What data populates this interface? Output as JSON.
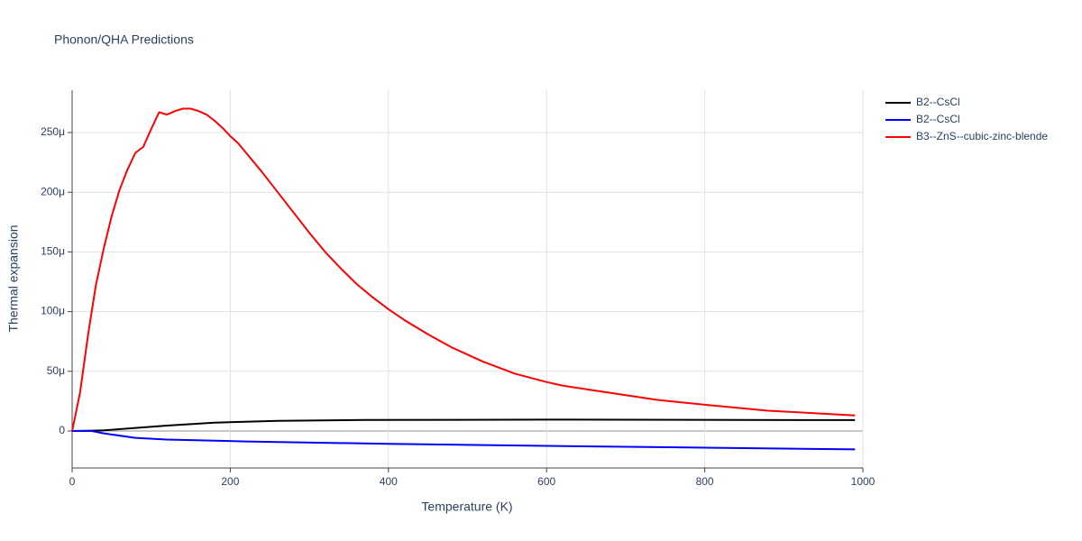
{
  "chart_data": {
    "type": "line",
    "title": "Phonon/QHA Predictions",
    "x_label": "Temperature (K)",
    "y_label": "Thermal expansion",
    "xlim": [
      0,
      1000
    ],
    "ylim": [
      -3.1e-05,
      0.0002855
    ],
    "xticks": [
      0,
      200,
      400,
      600,
      800,
      1000
    ],
    "yticks": [
      0,
      {
        "value": 5e-05,
        "label": "50μ"
      },
      {
        "value": 0.0001,
        "label": "100μ"
      },
      {
        "value": 0.00015,
        "label": "150μ"
      },
      {
        "value": 0.0002,
        "label": "200μ"
      },
      {
        "value": 0.00025,
        "label": "250μ"
      }
    ],
    "grid": true,
    "legend": "outside-right",
    "series": [
      {
        "name": "B2--CsCl",
        "color": "#000000",
        "x": [
          0,
          25,
          40,
          80,
          120,
          180,
          260,
          370,
          600,
          990
        ],
        "values": [
          0,
          3e-07,
          5e-07,
          2.5e-06,
          4.5e-06,
          7e-06,
          8.5e-06,
          9.2e-06,
          9.5e-06,
          9.1e-06
        ]
      },
      {
        "name": "B2--CsCl",
        "color": "#0000ff",
        "x": [
          0,
          25,
          40,
          80,
          120,
          220,
          400,
          600,
          800,
          990
        ],
        "values": [
          0,
          0,
          -2e-06,
          -5.8e-06,
          -7.2e-06,
          -8.8e-06,
          -1.08e-05,
          -1.25e-05,
          -1.4e-05,
          -1.54e-05
        ]
      },
      {
        "name": "B3--ZnS--cubic-zinc-blende",
        "color": "#ff0000",
        "x": [
          0,
          10,
          20,
          30,
          40,
          50,
          60,
          70,
          80,
          90,
          100,
          110,
          120,
          130,
          140,
          150,
          160,
          170,
          180,
          190,
          200,
          210,
          220,
          240,
          260,
          280,
          300,
          320,
          340,
          360,
          380,
          400,
          420,
          450,
          480,
          520,
          560,
          600,
          620,
          680,
          740,
          800,
          880,
          990
        ],
        "values": [
          0,
          3.2e-05,
          8e-05,
          0.000122,
          0.000153,
          0.00018,
          0.000202,
          0.000219,
          0.000233,
          0.000238,
          0.000253,
          0.000267,
          0.000265,
          0.000268,
          0.00027,
          0.00027,
          0.000268,
          0.000265,
          0.00026,
          0.000254,
          0.000247,
          0.000241,
          0.000233,
          0.000217,
          0.0002,
          0.000183,
          0.000166,
          0.00015,
          0.000136,
          0.000123,
          0.000112,
          0.000102,
          9.3e-05,
          8.1e-05,
          7e-05,
          5.8e-05,
          4.8e-05,
          4.1e-05,
          3.8e-05,
          3.2e-05,
          2.6e-05,
          2.2e-05,
          1.7e-05,
          1.3e-05
        ]
      }
    ]
  }
}
